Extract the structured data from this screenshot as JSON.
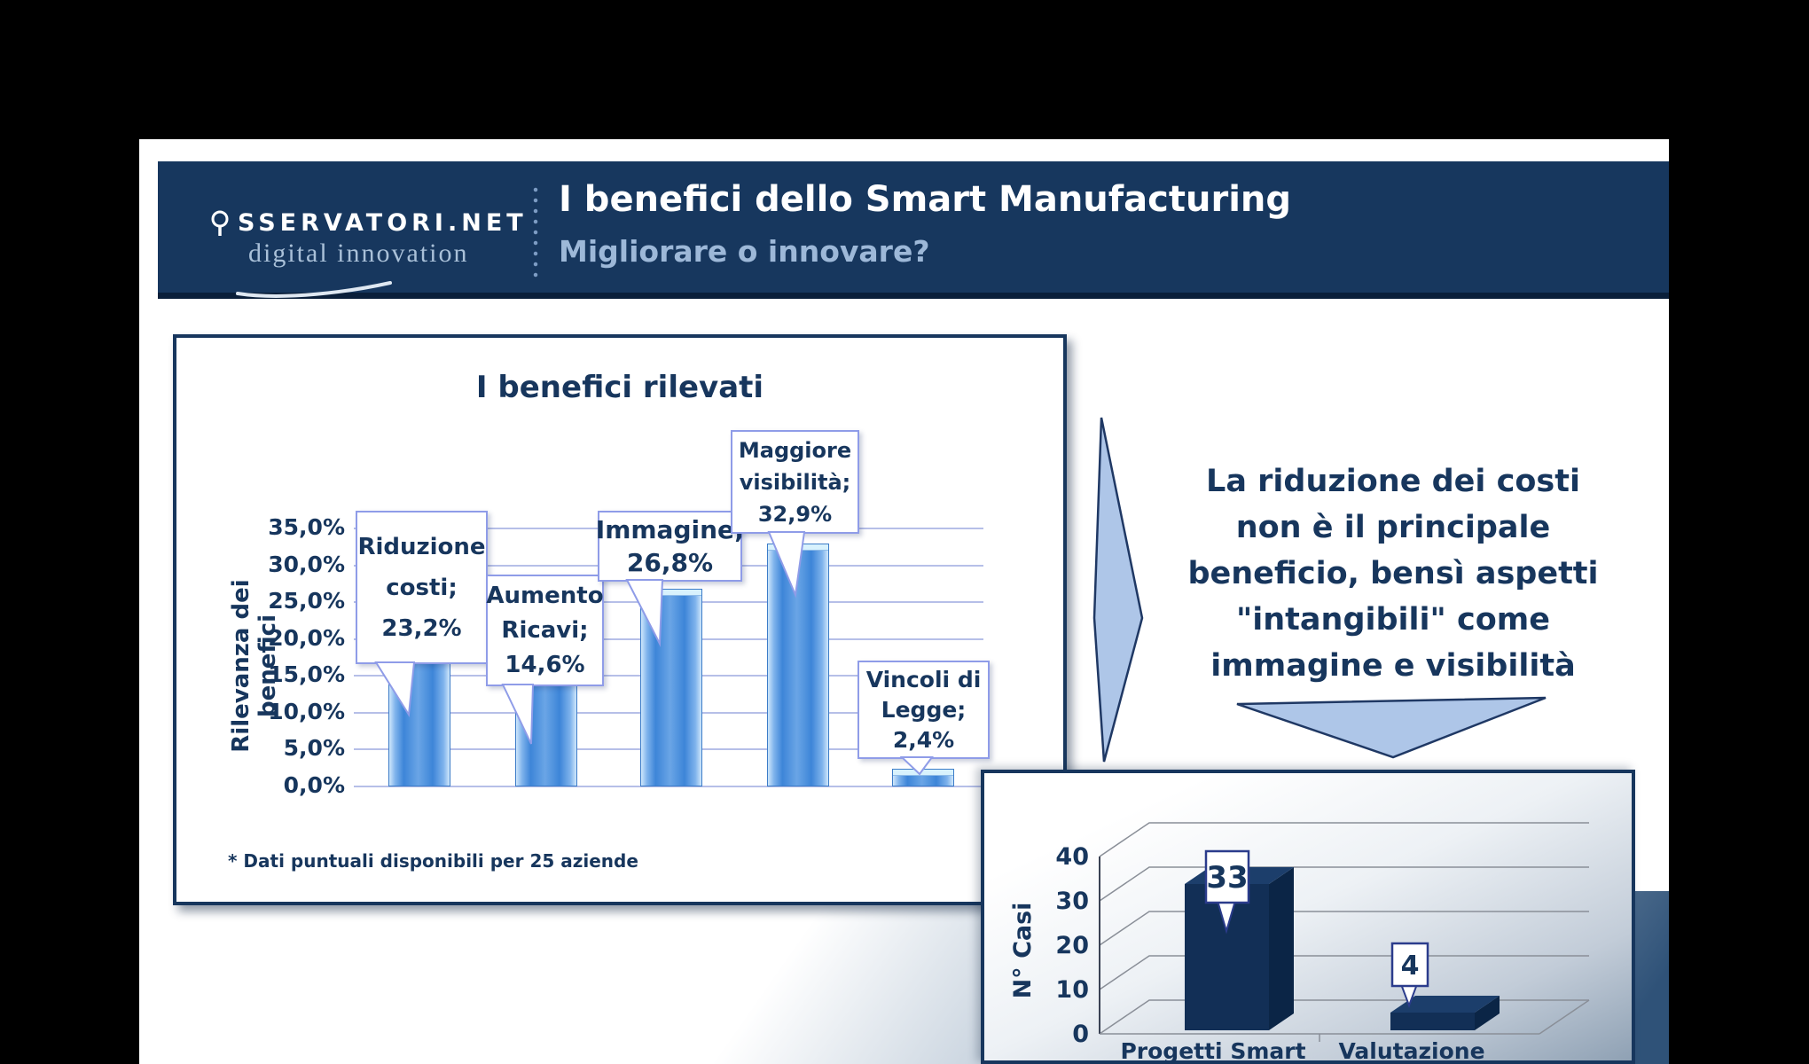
{
  "header": {
    "logo": {
      "icon": "magnifier-o-icon",
      "wordmark": "SSERVATORI.NET",
      "tagline": "digital innovation"
    },
    "title": "I benefici dello Smart Manufacturing",
    "subtitle": "Migliorare o innovare?"
  },
  "benefits_chart": {
    "title": "I benefici rilevati",
    "ylabel": "Rilevanza dei benefici",
    "yticks": [
      "35,0%",
      "30,0%",
      "25,0%",
      "20,0%",
      "15,0%",
      "10,0%",
      "5,0%",
      "0,0%"
    ],
    "bars": [
      {
        "name": "Riduzione costi",
        "value": 23.2,
        "callout_lines": [
          "Riduzione",
          "costi;",
          "23,2%"
        ]
      },
      {
        "name": "Aumento Ricavi",
        "value": 14.6,
        "callout_lines": [
          "Aumento",
          "Ricavi;",
          "14,6%"
        ]
      },
      {
        "name": "Immagine",
        "value": 26.8,
        "callout_lines": [
          "Immagine;",
          "26,8%"
        ]
      },
      {
        "name": "Maggiore visibilità",
        "value": 32.9,
        "callout_lines": [
          "Maggiore",
          "visibilità;",
          "32,9%"
        ]
      },
      {
        "name": "Vincoli di Legge",
        "value": 2.4,
        "callout_lines": [
          "Vincoli di",
          "Legge;",
          "2,4%"
        ]
      }
    ],
    "footnote": "* Dati puntuali disponibili per 25 aziende"
  },
  "insight": {
    "lines": [
      "La riduzione dei costi",
      "non è il principale",
      "beneficio, bensì aspetti",
      "\"intangibili\" come",
      "immagine e visibilità"
    ]
  },
  "cases_chart": {
    "ylabel": "N° Casi",
    "yticks": [
      "0",
      "10",
      "20",
      "30",
      "40"
    ],
    "categories": [
      "Progetti Smart",
      "Valutazione"
    ],
    "values": [
      33,
      4
    ],
    "data_labels": [
      "33",
      "4"
    ]
  },
  "chart_data": [
    {
      "type": "bar",
      "title": "I benefici rilevati",
      "xlabel": "",
      "ylabel": "Rilevanza dei benefici",
      "ylim": [
        0,
        35
      ],
      "ytick_step": 5,
      "ytick_format": "percent-comma",
      "categories": [
        "Riduzione costi",
        "Aumento Ricavi",
        "Immagine",
        "Maggiore visibilità",
        "Vincoli di Legge"
      ],
      "values": [
        23.2,
        14.6,
        26.8,
        32.9,
        2.4
      ],
      "data_labels": [
        "Riduzione costi; 23,2%",
        "Aumento Ricavi; 14,6%",
        "Immagine; 26,8%",
        "Maggiore visibilità; 32,9%",
        "Vincoli di Legge; 2,4%"
      ],
      "grid": true,
      "legend": false,
      "footnote": "* Dati puntuali disponibili per 25 aziende"
    },
    {
      "type": "bar",
      "style": "3d",
      "title": "",
      "xlabel": "",
      "ylabel": "N° Casi",
      "ylim": [
        0,
        40
      ],
      "ytick_step": 10,
      "categories": [
        "Progetti Smart",
        "Valutazione"
      ],
      "values": [
        33,
        4
      ],
      "data_labels": [
        "33",
        "4"
      ],
      "grid": true,
      "legend": false
    }
  ],
  "colors": {
    "header_navy": "#17375E",
    "text_navy": "#17365D",
    "subtitle_blue": "#9DB8D8",
    "bar_blue": "#4E93DD",
    "gridline": "#B6BFE8",
    "callout_border": "#8F9CE8",
    "arrow_fill": "#AEC6E8",
    "arrow_stroke": "#1F3864",
    "dark_bar_front": "#122F56",
    "dark_bar_top": "#1C3E6B",
    "dark_bar_side": "#0B2546"
  }
}
